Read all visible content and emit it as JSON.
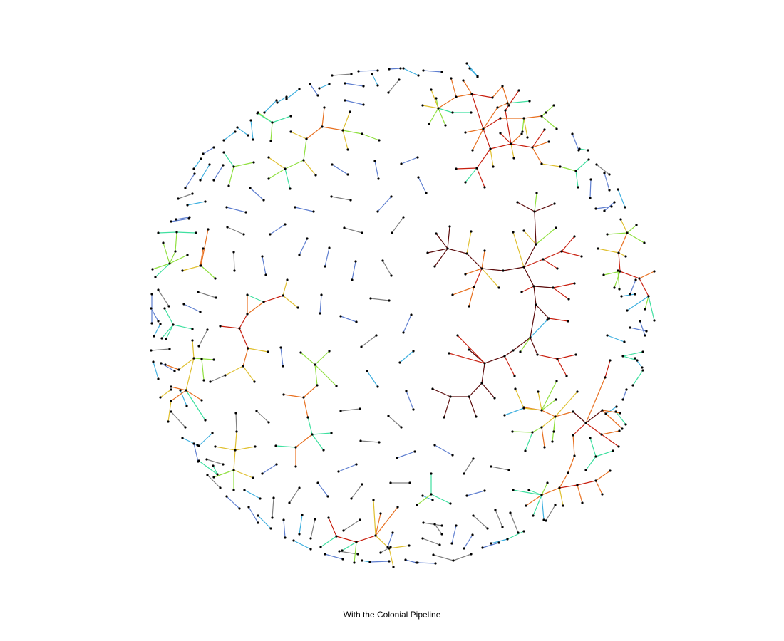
{
  "figure": {
    "caption": "With the Colonial Pipeline"
  },
  "legend_colors": {
    "level_0": "#808080",
    "level_1": "#5f7fd0",
    "level_2": "#3fb0e0",
    "level_3": "#3fe0a0",
    "level_4": "#90e040",
    "level_5": "#e0c030",
    "level_6": "#e87020",
    "level_7": "#c82010",
    "level_8": "#5a0a0a",
    "node": "#000000"
  }
}
